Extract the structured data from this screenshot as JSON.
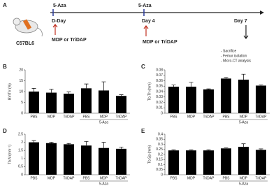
{
  "timeline": {
    "panel": "A",
    "strain": "C57BL6",
    "treatments": [
      "5-Aza",
      "5-Aza"
    ],
    "days": [
      "D-Day",
      "Day 4",
      "Day 7"
    ],
    "injections": [
      "MDP or TriDAP",
      "MDP or TriDAP"
    ],
    "analysis": [
      "- Sacrifice",
      "- Femur isolation",
      "- Micro-CT analysis"
    ]
  },
  "chart_data": [
    {
      "type": "bar",
      "panel": "B",
      "ylabel": "BV/TV (%)",
      "categories": [
        "PBS",
        "MDP",
        "TriDAP",
        "PBS",
        "MDP",
        "TriDAP"
      ],
      "group_label": "5-Aza",
      "values": [
        10,
        9.5,
        9,
        11.5,
        10.5,
        8
      ],
      "errors": [
        1.5,
        1.5,
        0.8,
        2,
        4,
        0.5
      ],
      "color": "#000000",
      "ylim": [
        0,
        20
      ],
      "yticks": [
        0,
        5,
        10,
        15,
        20
      ]
    },
    {
      "type": "bar",
      "panel": "C",
      "ylabel": "Tb.Th (mm)",
      "categories": [
        "PBS",
        "MDP",
        "TriDAP",
        "PBS",
        "MDP",
        "TriDAP"
      ],
      "group_label": "5-Aza",
      "values": [
        0.049,
        0.049,
        0.044,
        0.064,
        0.062,
        0.051
      ],
      "errors": [
        0.003,
        0.008,
        0.001,
        0.002,
        0.01,
        0.001
      ],
      "color": "#000000",
      "ylim": [
        0,
        0.08
      ],
      "yticks": [
        0,
        0.01,
        0.02,
        0.03,
        0.04,
        0.05,
        0.06,
        0.07,
        0.08
      ]
    },
    {
      "type": "bar",
      "panel": "D",
      "ylabel": "Tb.N (mm⁻¹)",
      "categories": [
        "PBS",
        "MDP",
        "TriDAP",
        "PBS",
        "MDP",
        "TriDAP"
      ],
      "group_label": "5-Aza",
      "values": [
        2.0,
        1.95,
        1.88,
        1.8,
        1.65,
        1.6
      ],
      "errors": [
        0.1,
        0.05,
        0.05,
        0.25,
        0.35,
        0.1
      ],
      "color": "#000000",
      "ylim": [
        0,
        2.5
      ],
      "yticks": [
        0,
        0.5,
        1,
        1.5,
        2,
        2.5
      ]
    },
    {
      "type": "bar",
      "panel": "E",
      "ylabel": "Tb.Sp (mm)",
      "categories": [
        "PBS",
        "MDP",
        "TriDAP",
        "PBS",
        "MDP",
        "TriDAP"
      ],
      "group_label": "5-Aza",
      "values": [
        0.24,
        0.24,
        0.24,
        0.26,
        0.275,
        0.245
      ],
      "errors": [
        0.005,
        0.005,
        0.005,
        0.005,
        0.03,
        0.01
      ],
      "color": "#000000",
      "ylim": [
        0,
        0.4
      ],
      "yticks": [
        0,
        0.05,
        0.1,
        0.15,
        0.2,
        0.25,
        0.3,
        0.35,
        0.4
      ]
    }
  ]
}
